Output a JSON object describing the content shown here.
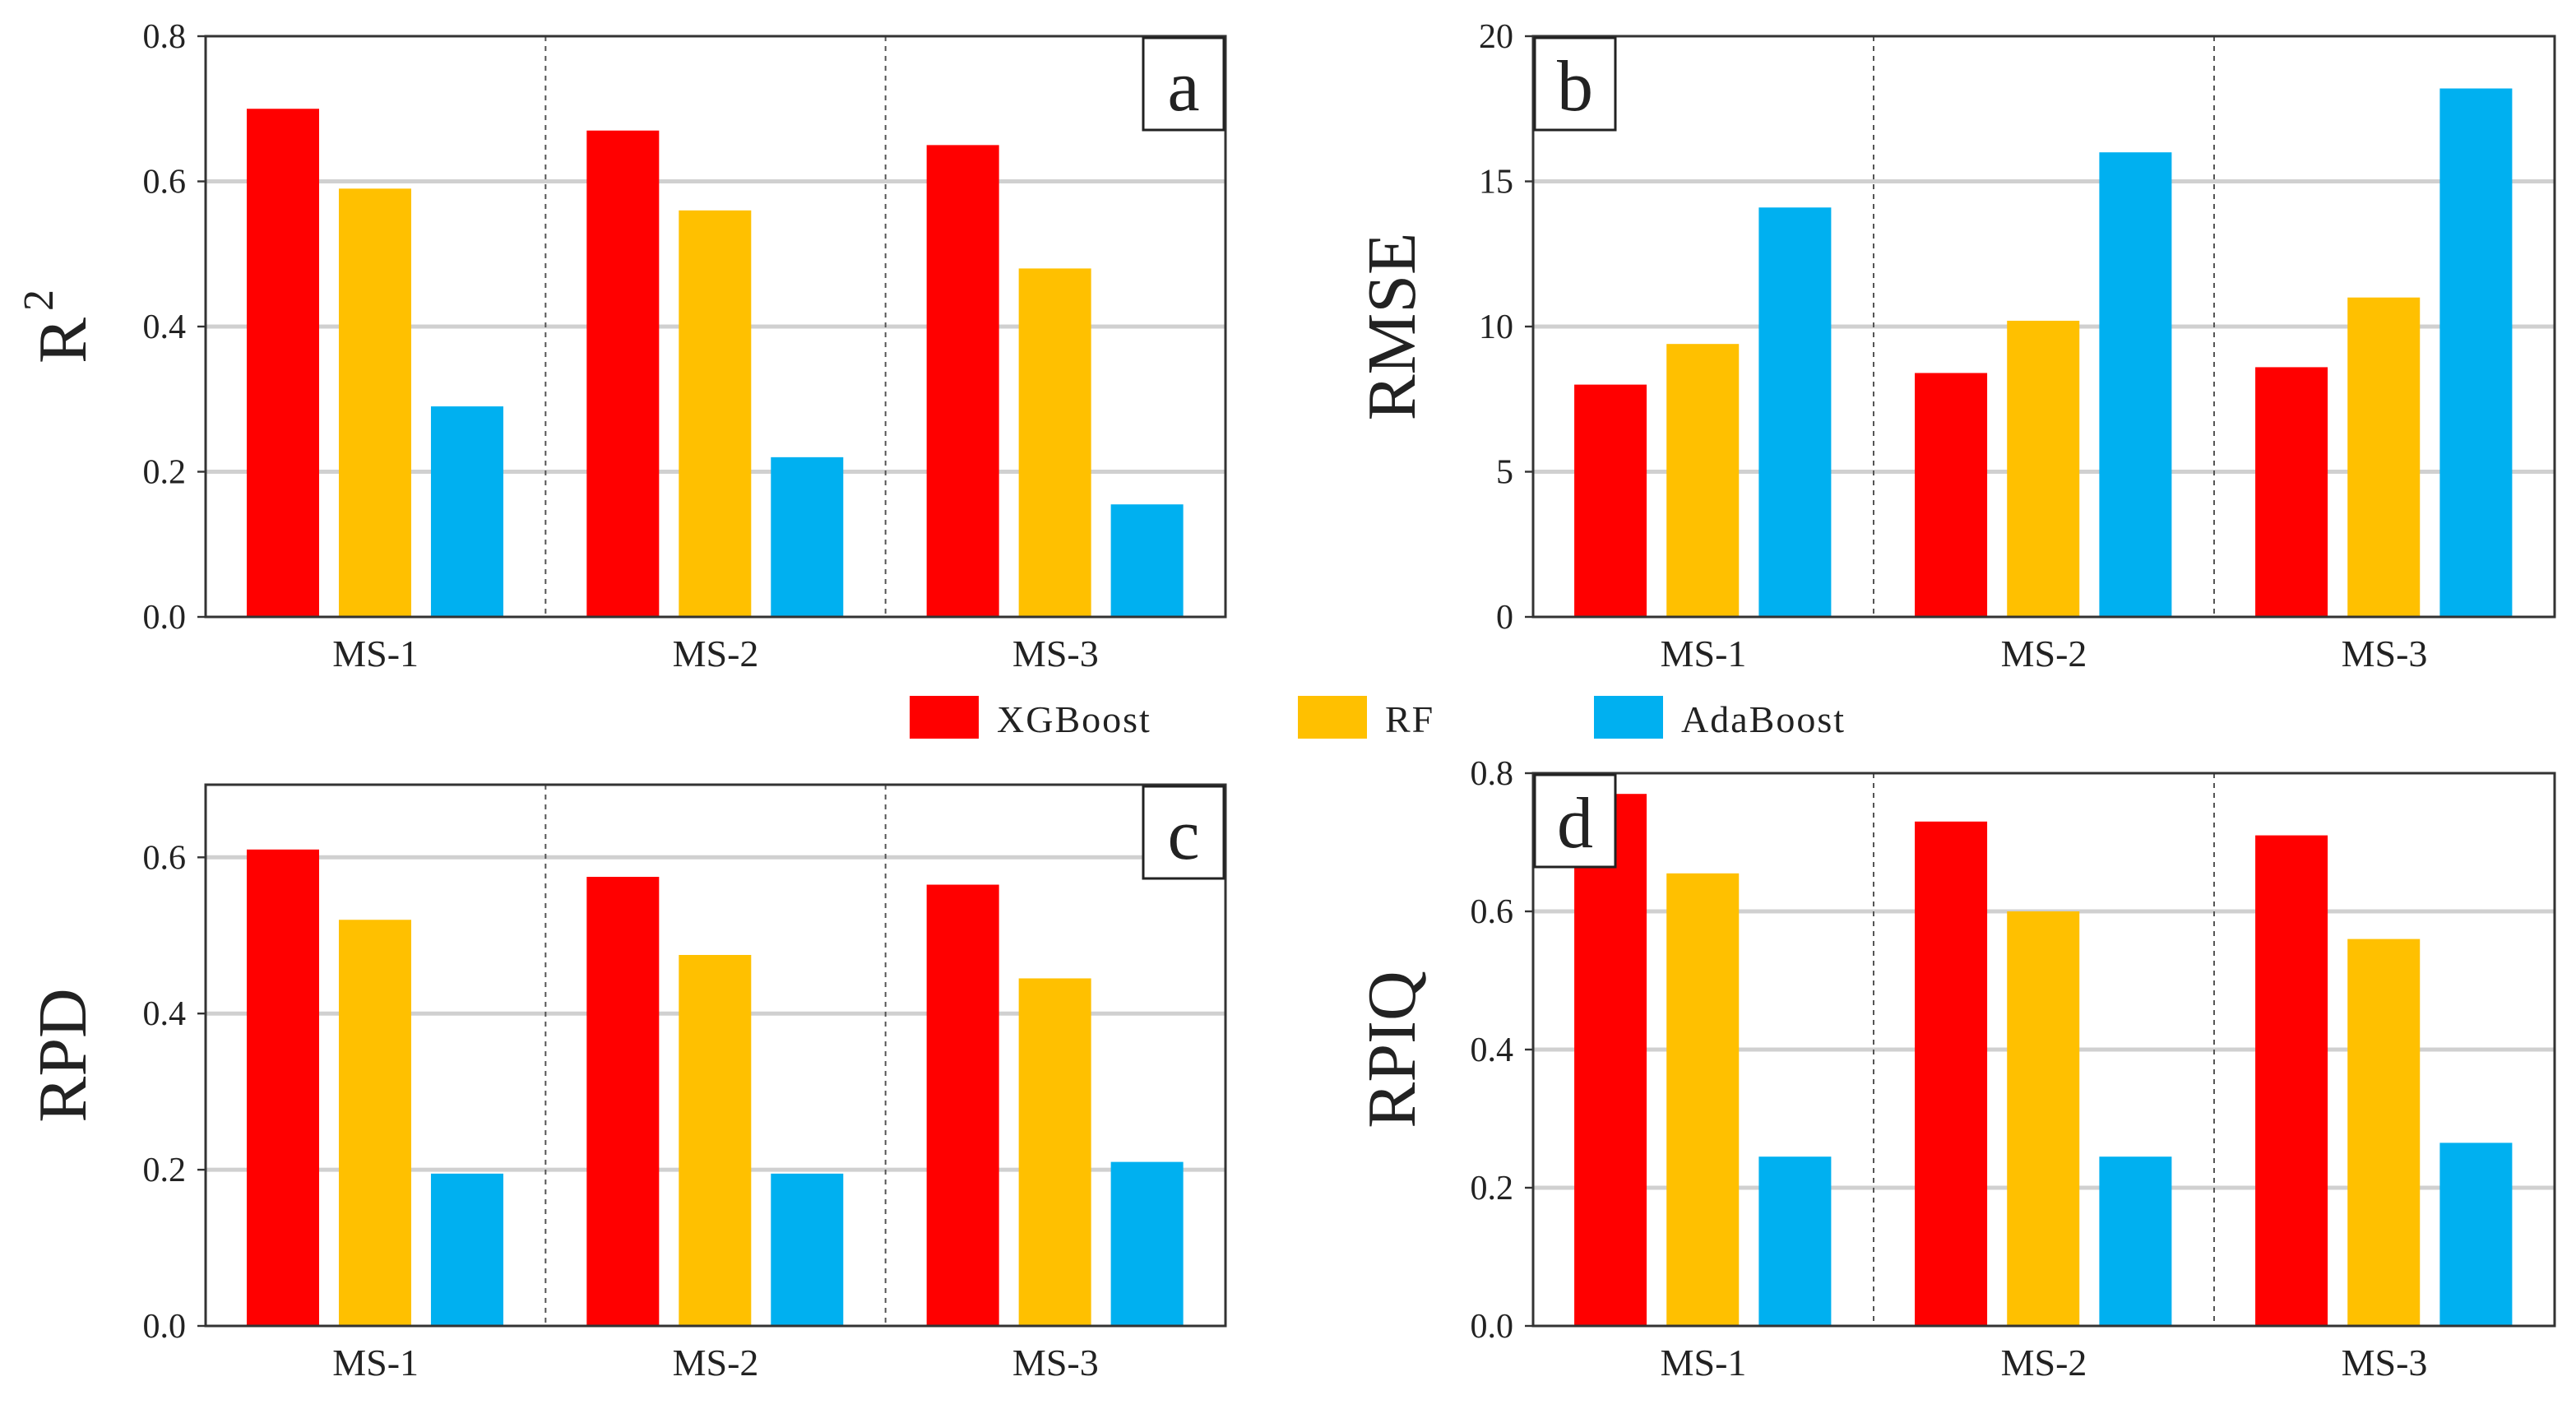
{
  "colors": {
    "XGBoost": "#ff0000",
    "RF": "#ffc000",
    "AdaBoost": "#00b0f0"
  },
  "legend": [
    "XGBoost",
    "RF",
    "AdaBoost"
  ],
  "chart_data": [
    {
      "type": "bar",
      "panel_label": "a",
      "ylabel": "R",
      "ylabel_sup": "2",
      "categories": [
        "MS-1",
        "MS-2",
        "MS-3"
      ],
      "ylim": [
        0,
        0.8
      ],
      "yticks": [
        "0.0",
        "0.2",
        "0.4",
        "0.6",
        "0.8"
      ],
      "grid": true,
      "series": [
        {
          "name": "XGBoost",
          "values": [
            0.7,
            0.67,
            0.65
          ]
        },
        {
          "name": "RF",
          "values": [
            0.59,
            0.56,
            0.48
          ]
        },
        {
          "name": "AdaBoost",
          "values": [
            0.29,
            0.22,
            0.155
          ]
        }
      ]
    },
    {
      "type": "bar",
      "panel_label": "b",
      "ylabel": "RMSE",
      "ylabel_sup": "",
      "categories": [
        "MS-1",
        "MS-2",
        "MS-3"
      ],
      "ylim": [
        0,
        20
      ],
      "yticks": [
        "0",
        "5",
        "10",
        "15",
        "20"
      ],
      "grid": true,
      "series": [
        {
          "name": "XGBoost",
          "values": [
            8.0,
            8.4,
            8.6
          ]
        },
        {
          "name": "RF",
          "values": [
            9.4,
            10.2,
            11.0
          ]
        },
        {
          "name": "AdaBoost",
          "values": [
            14.1,
            16.0,
            18.2
          ]
        }
      ]
    },
    {
      "type": "bar",
      "panel_label": "c",
      "ylabel": "RPD",
      "ylabel_sup": "",
      "categories": [
        "MS-1",
        "MS-2",
        "MS-3"
      ],
      "ylim": [
        0,
        0.693
      ],
      "yticks": [
        "0.0",
        "0.2",
        "0.4",
        "0.6"
      ],
      "grid": true,
      "series": [
        {
          "name": "XGBoost",
          "values": [
            0.61,
            0.575,
            0.565
          ]
        },
        {
          "name": "RF",
          "values": [
            0.52,
            0.475,
            0.445
          ]
        },
        {
          "name": "AdaBoost",
          "values": [
            0.195,
            0.195,
            0.21
          ]
        }
      ]
    },
    {
      "type": "bar",
      "panel_label": "d",
      "ylabel": "RPIQ",
      "ylabel_sup": "",
      "categories": [
        "MS-1",
        "MS-2",
        "MS-3"
      ],
      "ylim": [
        0,
        0.8
      ],
      "yticks": [
        "0.0",
        "0.2",
        "0.4",
        "0.6",
        "0.8"
      ],
      "grid": true,
      "series": [
        {
          "name": "XGBoost",
          "values": [
            0.77,
            0.73,
            0.71
          ]
        },
        {
          "name": "RF",
          "values": [
            0.655,
            0.6,
            0.56
          ]
        },
        {
          "name": "AdaBoost",
          "values": [
            0.245,
            0.245,
            0.265
          ]
        }
      ]
    }
  ]
}
